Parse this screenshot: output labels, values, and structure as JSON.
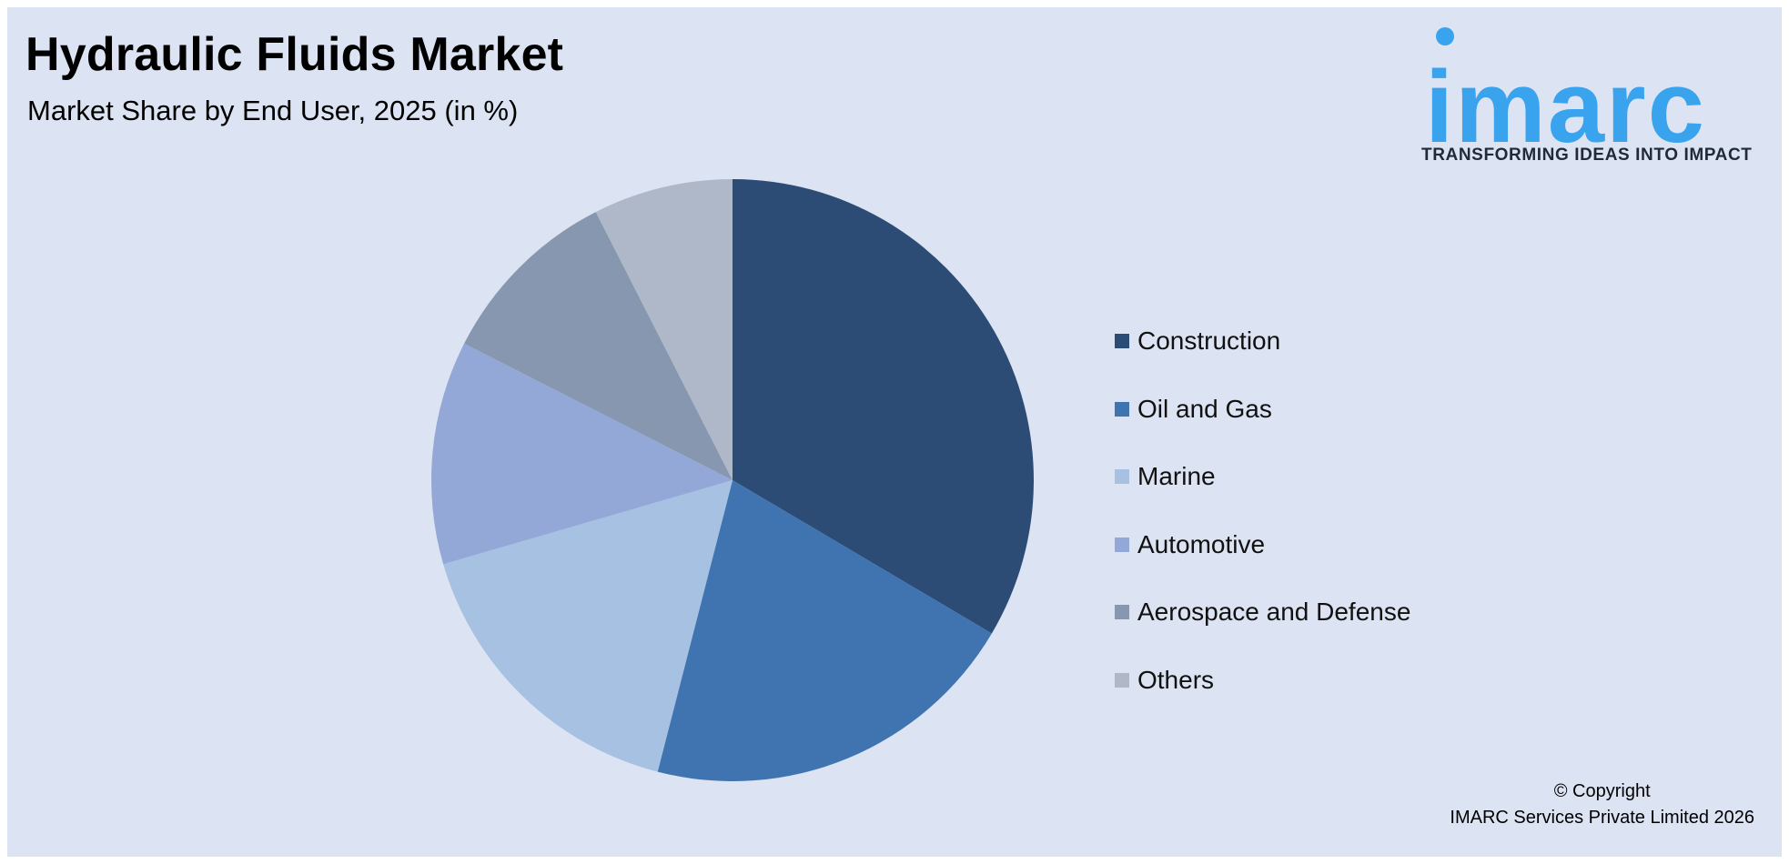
{
  "header": {
    "title": "Hydraulic Fluids Market",
    "subtitle": "Market Share by End User, 2025 (in %)"
  },
  "logo": {
    "wordmark": "imarc",
    "tagline": "TRANSFORMING IDEAS INTO IMPACT",
    "color": "#3aa3ee"
  },
  "chart_data": {
    "type": "pie",
    "title": "Hydraulic Fluids Market",
    "subtitle": "Market Share by End User, 2025 (in %)",
    "categories": [
      "Construction",
      "Oil and Gas",
      "Marine",
      "Automotive",
      "Aerospace and Defense",
      "Others"
    ],
    "values": [
      33.5,
      20.5,
      16.5,
      12.0,
      10.0,
      7.5
    ],
    "colors": [
      "#2c4c75",
      "#4074b1",
      "#a6c1e2",
      "#94a8d8",
      "#8797af",
      "#aeb8c9"
    ],
    "legend_position": "right",
    "start_angle_deg": 0,
    "direction": "clockwise"
  },
  "footer": {
    "copyright_line1": "© Copyright",
    "copyright_line2": "IMARC Services Private Limited 2026"
  }
}
